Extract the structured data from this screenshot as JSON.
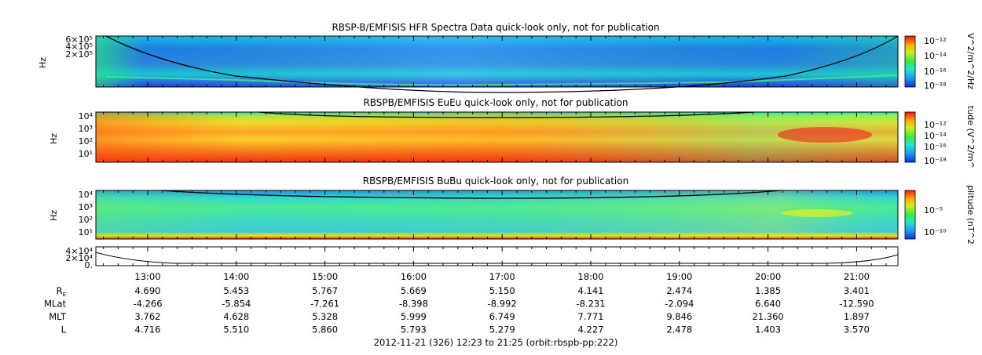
{
  "chart_data": [
    {
      "type": "heatmap",
      "title": "RBSP-B/EMFISIS  HFR Spectra Data quick-look only, not for publication",
      "ylabel": "Hz",
      "y_scale": "log",
      "y_ticks": [
        {
          "label": "6×10⁵"
        },
        {
          "label": "4×10⁵"
        },
        {
          "label": "2×10⁵"
        }
      ],
      "colorbar": {
        "label": "V^2/m^2/Hz",
        "scale": "log",
        "ticks": [
          "10⁻¹²",
          "10⁻¹⁴",
          "10⁻¹⁶",
          "10⁻¹⁸"
        ]
      }
    },
    {
      "type": "heatmap",
      "title": "RBSPB/EMFISIS  EuEu quick-look only, not for publication",
      "ylabel": "Hz",
      "y_scale": "log",
      "y_ticks": [
        {
          "label": "10⁴"
        },
        {
          "label": "10³"
        },
        {
          "label": "10²"
        },
        {
          "label": "10¹"
        }
      ],
      "colorbar": {
        "label": "tude (V^2/m^",
        "scale": "log",
        "ticks": [
          "10⁻¹²",
          "10⁻¹⁴",
          "10⁻¹⁶",
          "10⁻¹⁸"
        ]
      }
    },
    {
      "type": "heatmap",
      "title": "RBSPB/EMFISIS  BuBu quick-look only, not for publication",
      "ylabel": "Hz",
      "y_scale": "log",
      "y_ticks": [
        {
          "label": "10⁴"
        },
        {
          "label": "10³"
        },
        {
          "label": "10²"
        },
        {
          "label": "10¹"
        }
      ],
      "colorbar": {
        "label": "plitude (nT^2",
        "scale": "log",
        "ticks": [
          "10⁻⁵",
          "10⁻¹⁰"
        ]
      }
    },
    {
      "type": "line",
      "title": "",
      "ylabel": "",
      "y_ticks": [
        {
          "label": "4×10⁴"
        },
        {
          "label": "2×10⁴"
        },
        {
          "label": "0."
        }
      ]
    }
  ],
  "time_axis": {
    "labels": [
      "13:00",
      "14:00",
      "15:00",
      "16:00",
      "17:00",
      "18:00",
      "19:00",
      "20:00",
      "21:00"
    ]
  },
  "ephemeris": [
    {
      "label": "R",
      "sub": "E",
      "values": [
        "4.690",
        "5.453",
        "5.767",
        "5.669",
        "5.150",
        "4.141",
        "2.474",
        "1.385",
        "3.401"
      ]
    },
    {
      "label": "MLat",
      "sub": "",
      "values": [
        "-4.266",
        "-5.854",
        "-7.261",
        "-8.398",
        "-8.992",
        "-8.231",
        "-2.094",
        "6.640",
        "-12.590"
      ]
    },
    {
      "label": "MLT",
      "sub": "",
      "values": [
        "3.762",
        "4.628",
        "5.328",
        "5.999",
        "6.749",
        "7.771",
        "9.846",
        "21.360",
        "1.897"
      ]
    },
    {
      "label": "L",
      "sub": "",
      "values": [
        "4.716",
        "5.510",
        "5.860",
        "5.793",
        "5.279",
        "4.227",
        "2.478",
        "1.403",
        "3.570"
      ]
    }
  ],
  "footer": "2012-11-21 (326) 12:23 to 21:25 (orbit:rbspb-pp:222)"
}
